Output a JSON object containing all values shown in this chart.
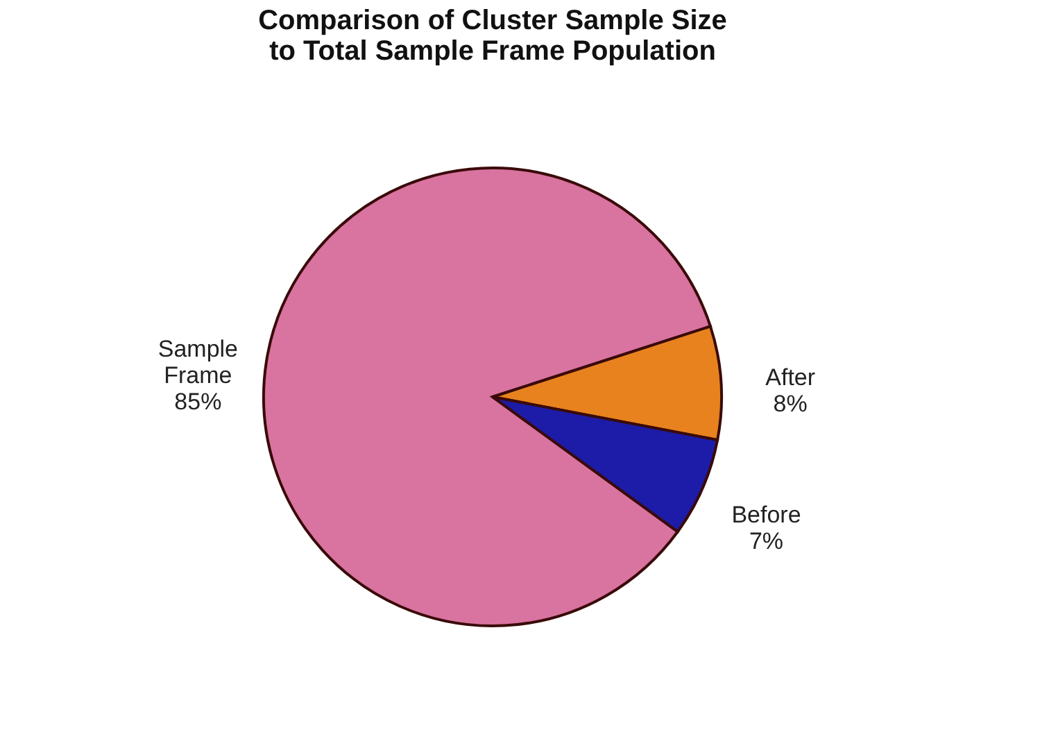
{
  "chart_data": {
    "type": "pie",
    "title": "Comparison of Cluster Sample Size\nto Total Sample Frame Population",
    "categories": [
      "Sample Frame",
      "After",
      "Before"
    ],
    "values": [
      85,
      8,
      7
    ],
    "value_labels": [
      "85%",
      "8%",
      "7%"
    ],
    "colors": [
      "#d9739f",
      "#e8821e",
      "#1c1ca8"
    ],
    "legend": false
  }
}
